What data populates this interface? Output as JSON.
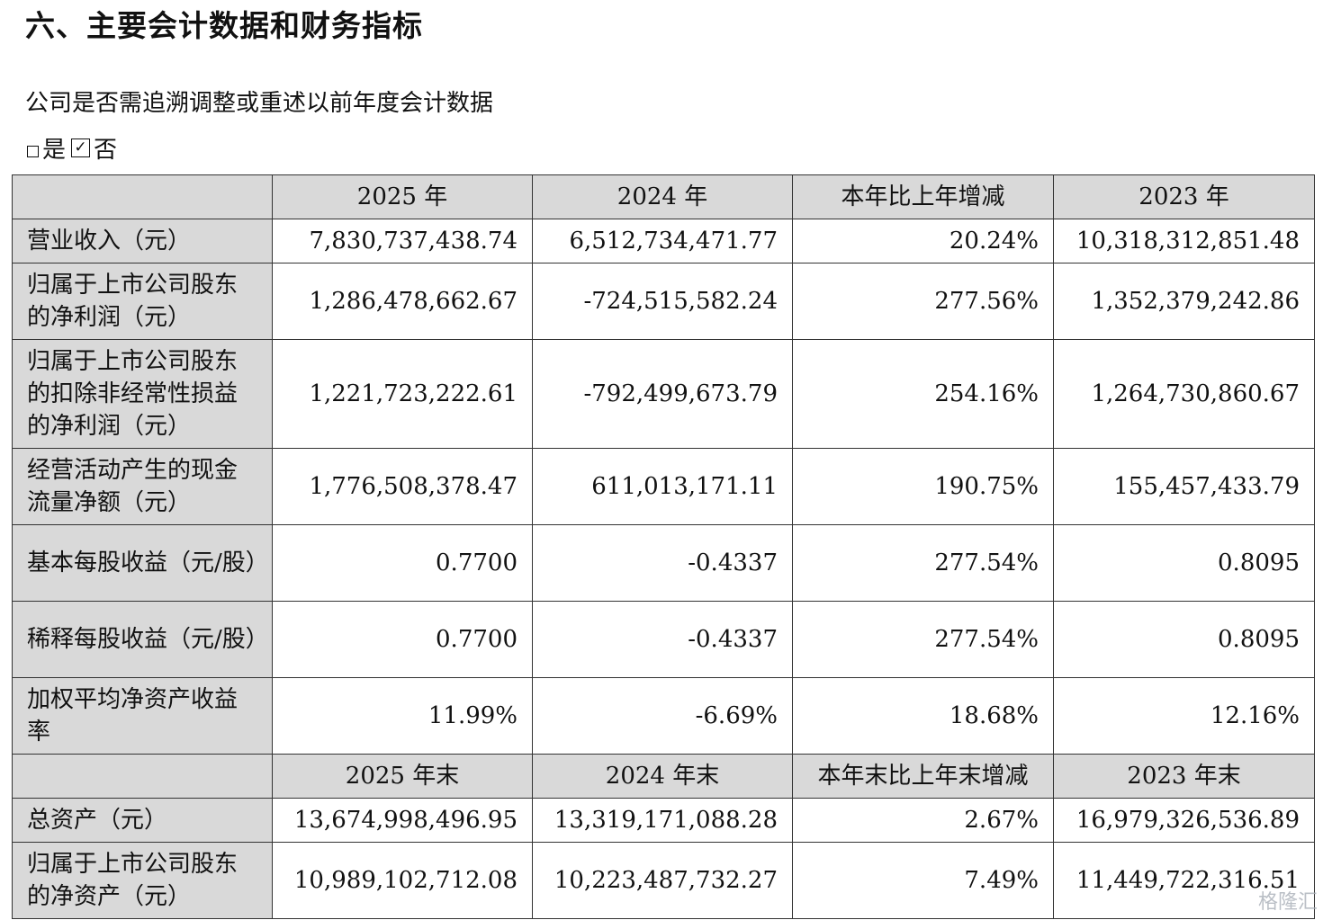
{
  "heading": "六、主要会计数据和财务指标",
  "question": "公司是否需追溯调整或重述以前年度会计数据",
  "answer": {
    "yes": "是",
    "no": "否",
    "check_mark": "✓"
  },
  "header1": [
    "2025 年",
    "2024 年",
    "本年比上年增减",
    "2023 年"
  ],
  "rows1": [
    {
      "label": "营业收入（元）",
      "values": [
        "7,830,737,438.74",
        "6,512,734,471.77",
        "20.24%",
        "10,318,312,851.48"
      ]
    },
    {
      "label": "归属于上市公司股东的净利润（元）",
      "values": [
        "1,286,478,662.67",
        "-724,515,582.24",
        "277.56%",
        "1,352,379,242.86"
      ]
    },
    {
      "label": "归属于上市公司股东的扣除非经常性损益的净利润（元）",
      "values": [
        "1,221,723,222.61",
        "-792,499,673.79",
        "254.16%",
        "1,264,730,860.67"
      ]
    },
    {
      "label": "经营活动产生的现金流量净额（元）",
      "values": [
        "1,776,508,378.47",
        "611,013,171.11",
        "190.75%",
        "155,457,433.79"
      ]
    },
    {
      "label": "基本每股收益（元/股）",
      "values": [
        "0.7700",
        "-0.4337",
        "277.54%",
        "0.8095"
      ]
    },
    {
      "label": "稀释每股收益（元/股）",
      "values": [
        "0.7700",
        "-0.4337",
        "277.54%",
        "0.8095"
      ]
    },
    {
      "label": "加权平均净资产收益率",
      "values": [
        "11.99%",
        "-6.69%",
        "18.68%",
        "12.16%"
      ]
    }
  ],
  "header2": [
    "2025 年末",
    "2024 年末",
    "本年末比上年末增减",
    "2023 年末"
  ],
  "rows2": [
    {
      "label": "总资产（元）",
      "values": [
        "13,674,998,496.95",
        "13,319,171,088.28",
        "2.67%",
        "16,979,326,536.89"
      ]
    },
    {
      "label": "归属于上市公司股东的净资产（元）",
      "values": [
        "10,989,102,712.08",
        "10,223,487,732.27",
        "7.49%",
        "11,449,722,316.51"
      ]
    }
  ],
  "watermark": "格隆汇"
}
